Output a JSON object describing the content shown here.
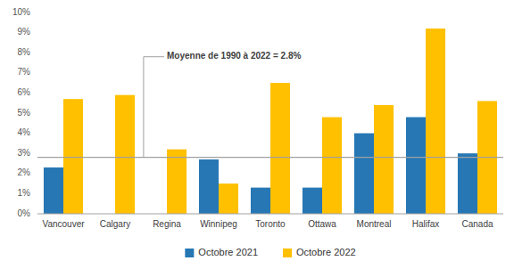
{
  "chart_data": {
    "type": "bar",
    "categories": [
      "Vancouver",
      "Calgary",
      "Regina",
      "Winnipeg",
      "Toronto",
      "Ottawa",
      "Montreal",
      "Halifax",
      "Canada"
    ],
    "series": [
      {
        "name": "Octobre 2021",
        "color": "#2777B4",
        "values": [
          2.3,
          0.0,
          0.0,
          2.7,
          1.3,
          1.3,
          4.0,
          4.8,
          3.0
        ]
      },
      {
        "name": "Octobre 2022",
        "color": "#FFC000",
        "values": [
          5.7,
          5.9,
          3.2,
          1.5,
          6.5,
          4.8,
          5.4,
          9.2,
          5.6
        ]
      }
    ],
    "annotations": [
      {
        "text": "Moyenne de 1990 à 2022 = 2.8%",
        "value": 2.8,
        "color": "#A0A0A0"
      }
    ],
    "ylim": [
      0,
      10
    ],
    "yticks": [
      {
        "value": 0,
        "label": "0%"
      },
      {
        "value": 1,
        "label": "1%"
      },
      {
        "value": 2,
        "label": "2%"
      },
      {
        "value": 3,
        "label": "3%"
      },
      {
        "value": 4,
        "label": "4%"
      },
      {
        "value": 5,
        "label": "5%"
      },
      {
        "value": 6,
        "label": "6%"
      },
      {
        "value": 7,
        "label": "7%"
      },
      {
        "value": 8,
        "label": "8%"
      },
      {
        "value": 9,
        "label": "9%"
      },
      {
        "value": 10,
        "label": "10%"
      }
    ],
    "grid": false,
    "legend": "bottom"
  }
}
